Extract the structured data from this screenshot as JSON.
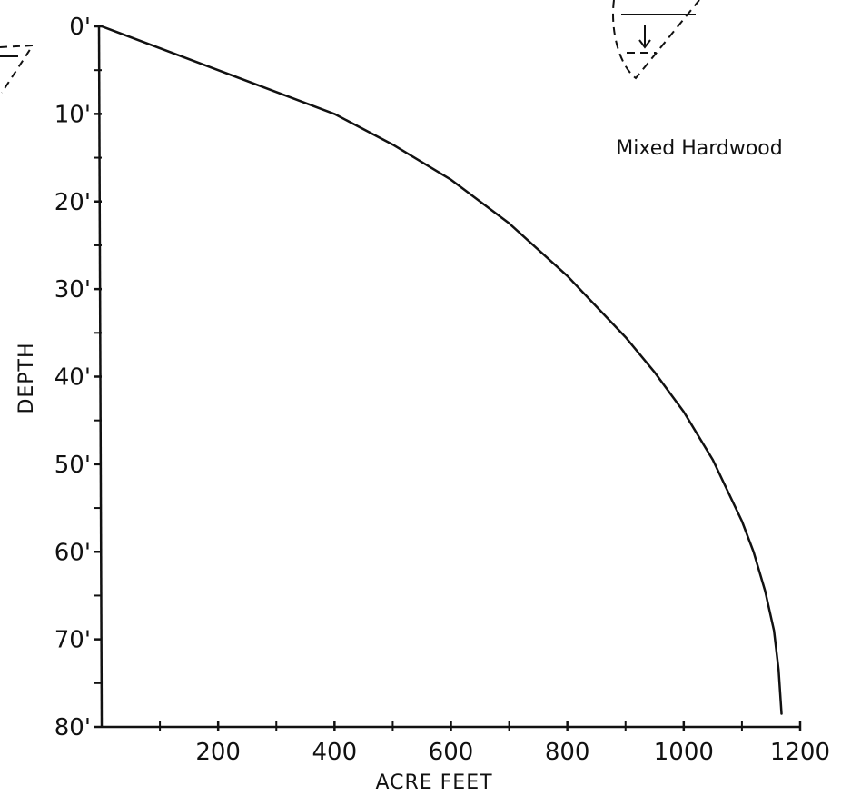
{
  "chart_data": {
    "type": "line",
    "title": "",
    "annotation": "Mixed Hardwood",
    "xlabel": "ACRE FEET",
    "ylabel": "DEPTH",
    "xlim": [
      0,
      1200
    ],
    "ylim": [
      0,
      80
    ],
    "y_inverted": true,
    "x_ticks": [
      200,
      400,
      600,
      800,
      1000,
      1200
    ],
    "x_tick_labels": [
      "200",
      "400",
      "600",
      "800",
      "1000",
      "1200"
    ],
    "y_ticks": [
      0,
      10,
      20,
      30,
      40,
      50,
      60,
      70,
      80
    ],
    "y_tick_labels": [
      "0'",
      "10'",
      "20'",
      "30'",
      "40'",
      "50'",
      "60'",
      "70'",
      "80'"
    ],
    "grid": false,
    "series": [
      {
        "x": [
          0,
          100,
          200,
          300,
          400,
          500,
          600,
          700,
          800,
          900,
          950,
          1000,
          1050,
          1100,
          1120,
          1140,
          1155,
          1163,
          1168
        ],
        "y": [
          0,
          2.5,
          5,
          7.5,
          10,
          13.5,
          17.5,
          22.5,
          28.5,
          35.5,
          39.5,
          44,
          49.5,
          56.5,
          60,
          64.5,
          69,
          73.5,
          78.5
        ]
      }
    ]
  },
  "icons": {
    "top_right": "reservoir-cross-section-icon",
    "top_left": "partial-reservoir-cross-section-icon"
  },
  "colors": {
    "ink": "#111111",
    "background": "#ffffff"
  }
}
